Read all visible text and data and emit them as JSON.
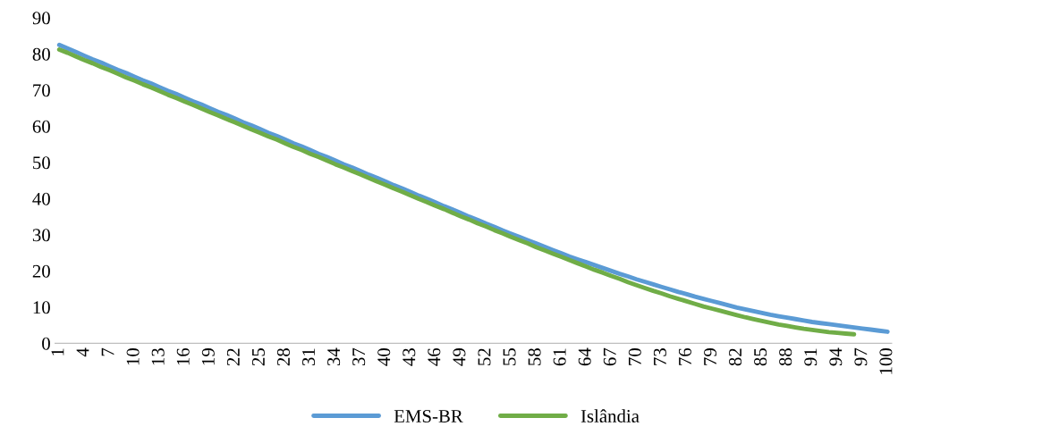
{
  "chart_data": {
    "type": "line",
    "categories": [
      "1",
      null,
      null,
      "4",
      null,
      null,
      "7",
      null,
      null,
      "10",
      null,
      null,
      "13",
      null,
      null,
      "16",
      null,
      null,
      "19",
      null,
      null,
      "22",
      null,
      null,
      "25",
      null,
      null,
      "28",
      null,
      null,
      "31",
      null,
      null,
      "34",
      null,
      null,
      "37",
      null,
      null,
      "40",
      null,
      null,
      "43",
      null,
      null,
      "46",
      null,
      null,
      "49",
      null,
      null,
      "52",
      null,
      null,
      "55",
      null,
      null,
      "58",
      null,
      null,
      "61",
      null,
      null,
      "64",
      null,
      null,
      "67",
      null,
      null,
      "70",
      null,
      null,
      "73",
      null,
      null,
      "76",
      null,
      null,
      "79",
      null,
      null,
      "82",
      null,
      null,
      "85",
      null,
      null,
      "88",
      null,
      null,
      "91",
      null,
      null,
      "94",
      null,
      null,
      "97",
      null,
      null,
      "100"
    ],
    "series": [
      {
        "name": "EMS-BR",
        "color": "#5b9bd5",
        "values": [
          82.5,
          81.5,
          80.5,
          79.5,
          78.5,
          77.6,
          76.6,
          75.6,
          74.7,
          73.7,
          72.7,
          71.8,
          70.8,
          69.8,
          68.9,
          67.9,
          66.9,
          66.0,
          65.0,
          64.0,
          63.1,
          62.1,
          61.1,
          60.2,
          59.2,
          58.2,
          57.3,
          56.3,
          55.3,
          54.4,
          53.4,
          52.4,
          51.5,
          50.5,
          49.5,
          48.6,
          47.6,
          46.6,
          45.7,
          44.7,
          43.7,
          42.8,
          41.8,
          40.8,
          39.9,
          38.9,
          37.9,
          37.0,
          36.0,
          35.0,
          34.1,
          33.1,
          32.2,
          31.2,
          30.3,
          29.4,
          28.5,
          27.6,
          26.7,
          25.8,
          24.9,
          24.0,
          23.2,
          22.4,
          21.6,
          20.8,
          20.0,
          19.2,
          18.5,
          17.7,
          17.0,
          16.3,
          15.6,
          14.9,
          14.2,
          13.6,
          12.9,
          12.3,
          11.7,
          11.1,
          10.5,
          9.9,
          9.4,
          8.9,
          8.4,
          7.9,
          7.5,
          7.1,
          6.7,
          6.3,
          5.9,
          5.6,
          5.3,
          5.0,
          4.7,
          4.4,
          4.1,
          3.8,
          3.5,
          3.2
        ]
      },
      {
        "name": "Islândia",
        "color": "#70ad47",
        "values": [
          81.2,
          80.3,
          79.3,
          78.3,
          77.4,
          76.4,
          75.5,
          74.5,
          73.5,
          72.6,
          71.6,
          70.7,
          69.7,
          68.7,
          67.8,
          66.8,
          65.9,
          64.9,
          63.9,
          63.0,
          62.0,
          61.1,
          60.1,
          59.1,
          58.2,
          57.2,
          56.3,
          55.3,
          54.3,
          53.4,
          52.4,
          51.5,
          50.5,
          49.5,
          48.6,
          47.6,
          46.7,
          45.7,
          44.7,
          43.8,
          42.8,
          41.9,
          40.9,
          39.9,
          39.0,
          38.0,
          37.1,
          36.1,
          35.1,
          34.2,
          33.2,
          32.3,
          31.3,
          30.4,
          29.4,
          28.5,
          27.6,
          26.6,
          25.7,
          24.8,
          23.9,
          23.0,
          22.1,
          21.2,
          20.3,
          19.5,
          18.6,
          17.8,
          16.9,
          16.1,
          15.3,
          14.5,
          13.8,
          13.0,
          12.3,
          11.6,
          10.9,
          10.2,
          9.6,
          9.0,
          8.4,
          7.8,
          7.2,
          6.7,
          6.2,
          5.7,
          5.2,
          4.8,
          4.4,
          4.0,
          3.7,
          3.4,
          3.1,
          2.9,
          2.7,
          2.5,
          null,
          null,
          null,
          null
        ]
      }
    ],
    "ylim": [
      0,
      90
    ],
    "yticks": [
      0,
      10,
      20,
      30,
      40,
      50,
      60,
      70,
      80,
      90
    ],
    "grid": false,
    "legend": "bottom",
    "marker": "none",
    "line_style": "solid"
  }
}
